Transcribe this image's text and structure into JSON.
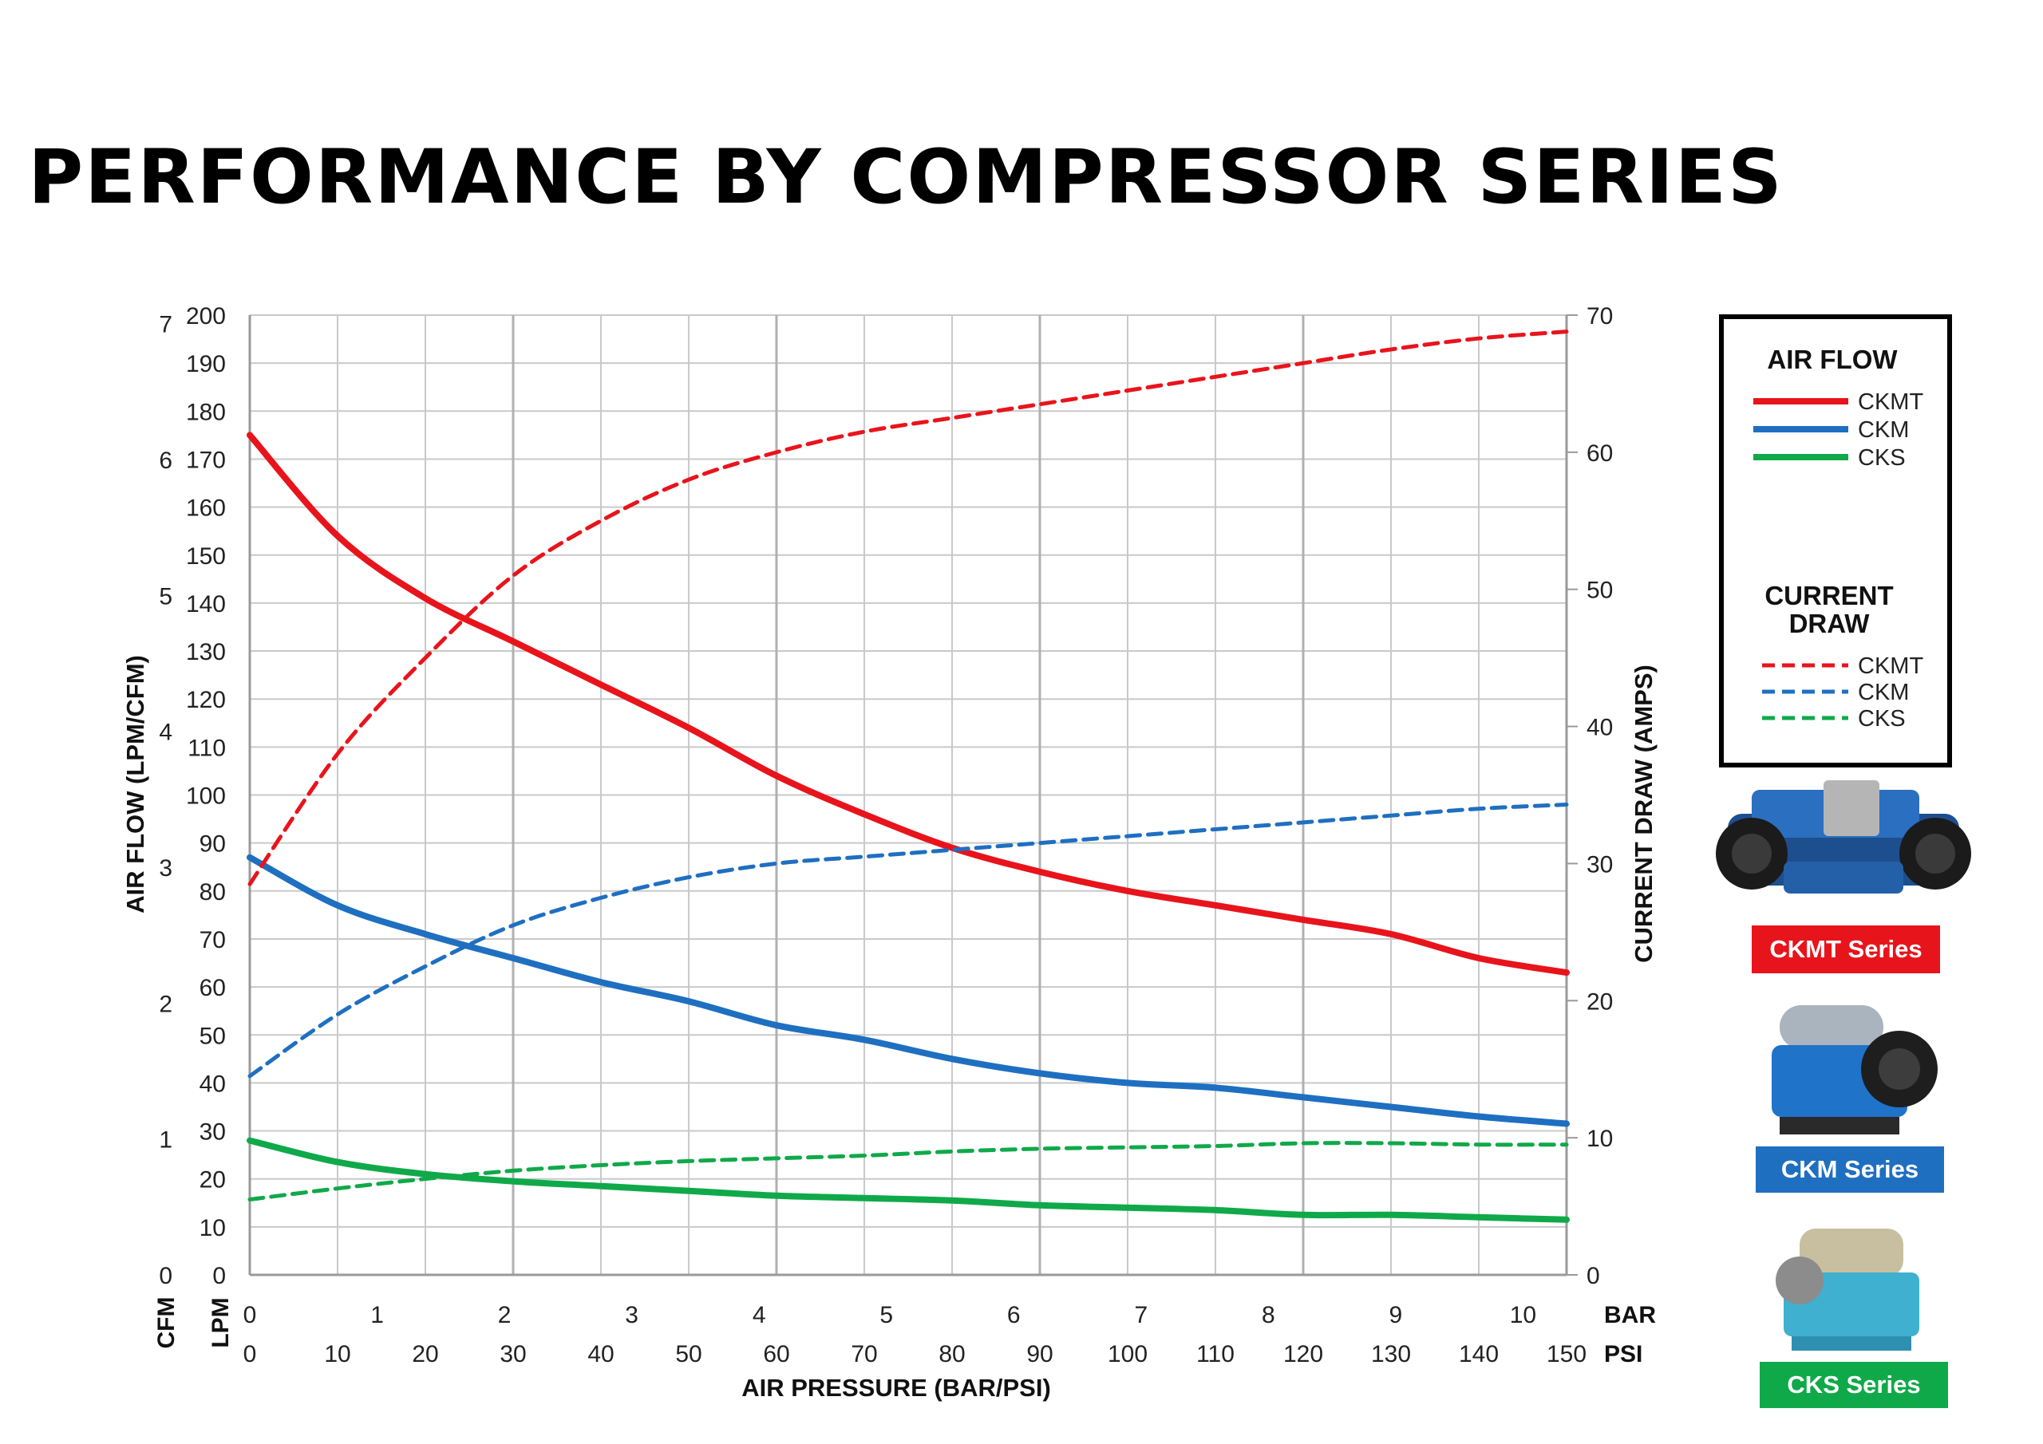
{
  "title": "PERFORMANCE BY COMPRESSOR SERIES",
  "colors": {
    "ckmt": "#e8141c",
    "ckm": "#1f6fc1",
    "cks": "#10a94a",
    "grid": "#c9c9c9"
  },
  "chart_data": {
    "type": "line",
    "title": "PERFORMANCE BY COMPRESSOR SERIES",
    "xlabel": "AIR PRESSURE (BAR/PSI)",
    "ylabel_left": "AIR FLOW (LPM/CFM)",
    "ylabel_right": "CURRENT DRAW (AMPS)",
    "xlim_psi": [
      0,
      150
    ],
    "ylim_lpm": [
      0,
      200
    ],
    "ylim_amps": [
      0,
      70
    ],
    "psi_ticks": [
      "0",
      "10",
      "20",
      "30",
      "40",
      "50",
      "60",
      "70",
      "80",
      "90",
      "100",
      "110",
      "120",
      "130",
      "140",
      "150"
    ],
    "bar_ticks": [
      "0",
      "1",
      "2",
      "3",
      "4",
      "5",
      "6",
      "7",
      "8",
      "9",
      "10"
    ],
    "lpm_ticks": [
      "0",
      "10",
      "20",
      "30",
      "40",
      "50",
      "60",
      "70",
      "80",
      "90",
      "100",
      "110",
      "120",
      "130",
      "140",
      "150",
      "160",
      "170",
      "180",
      "190",
      "200"
    ],
    "cfm_ticks": [
      "0",
      "1",
      "2",
      "3",
      "4",
      "5",
      "6",
      "7"
    ],
    "amps_ticks": [
      "0",
      "10",
      "20",
      "30",
      "40",
      "50",
      "60",
      "70"
    ],
    "unit_labels": {
      "cfm": "CFM",
      "lpm": "LPM",
      "bar": "BAR",
      "psi": "PSI"
    },
    "x_psi": [
      0,
      10,
      20,
      30,
      40,
      50,
      60,
      70,
      80,
      90,
      100,
      110,
      120,
      130,
      140,
      150
    ],
    "series": [
      {
        "name": "CKMT",
        "group": "AIR FLOW",
        "axis": "lpm",
        "style": "solid",
        "color": "#e8141c",
        "values": [
          175,
          154,
          141,
          132,
          123,
          114,
          104,
          96,
          89,
          84,
          80,
          77,
          74,
          71,
          66,
          63
        ]
      },
      {
        "name": "CKM",
        "group": "AIR FLOW",
        "axis": "lpm",
        "style": "solid",
        "color": "#1f6fc1",
        "values": [
          87,
          77,
          71,
          66,
          61,
          57,
          52,
          49,
          45,
          42,
          40,
          39,
          37,
          35,
          33,
          31.5
        ]
      },
      {
        "name": "CKS",
        "group": "AIR FLOW",
        "axis": "lpm",
        "style": "solid",
        "color": "#10a94a",
        "values": [
          28,
          23.5,
          21,
          19.5,
          18.5,
          17.5,
          16.5,
          16,
          15.5,
          14.5,
          14,
          13.5,
          12.5,
          12.5,
          12,
          11.5
        ]
      },
      {
        "name": "CKMT",
        "group": "CURRENT DRAW",
        "axis": "amps",
        "style": "dashed",
        "color": "#e8141c",
        "values": [
          28.5,
          38,
          45,
          51,
          55,
          58,
          60,
          61.5,
          62.5,
          63.5,
          64.5,
          65.5,
          66.5,
          67.5,
          68.3,
          68.8
        ]
      },
      {
        "name": "CKM",
        "group": "CURRENT DRAW",
        "axis": "amps",
        "style": "dashed",
        "color": "#1f6fc1",
        "values": [
          14.5,
          19,
          22.5,
          25.5,
          27.5,
          29,
          30,
          30.5,
          31,
          31.5,
          32,
          32.5,
          33,
          33.5,
          34,
          34.3
        ]
      },
      {
        "name": "CKS",
        "group": "CURRENT DRAW",
        "axis": "amps",
        "style": "dashed",
        "color": "#10a94a",
        "values": [
          5.5,
          6.3,
          7,
          7.6,
          8,
          8.3,
          8.5,
          8.7,
          9,
          9.2,
          9.3,
          9.4,
          9.6,
          9.6,
          9.5,
          9.5
        ]
      }
    ],
    "legend": {
      "position": "right",
      "air_flow_heading": "AIR FLOW",
      "current_draw_heading": [
        "CURRENT",
        "DRAW"
      ],
      "items": [
        "CKMT",
        "CKM",
        "CKS"
      ]
    }
  },
  "products": [
    {
      "name": "CKMT Series",
      "icon": "ckmt-compressor-icon",
      "color": "#e8141c"
    },
    {
      "name": "CKM Series",
      "icon": "ckm-compressor-icon",
      "color": "#1f6fc1"
    },
    {
      "name": "CKS Series",
      "icon": "cks-compressor-icon",
      "color": "#10a94a"
    }
  ]
}
